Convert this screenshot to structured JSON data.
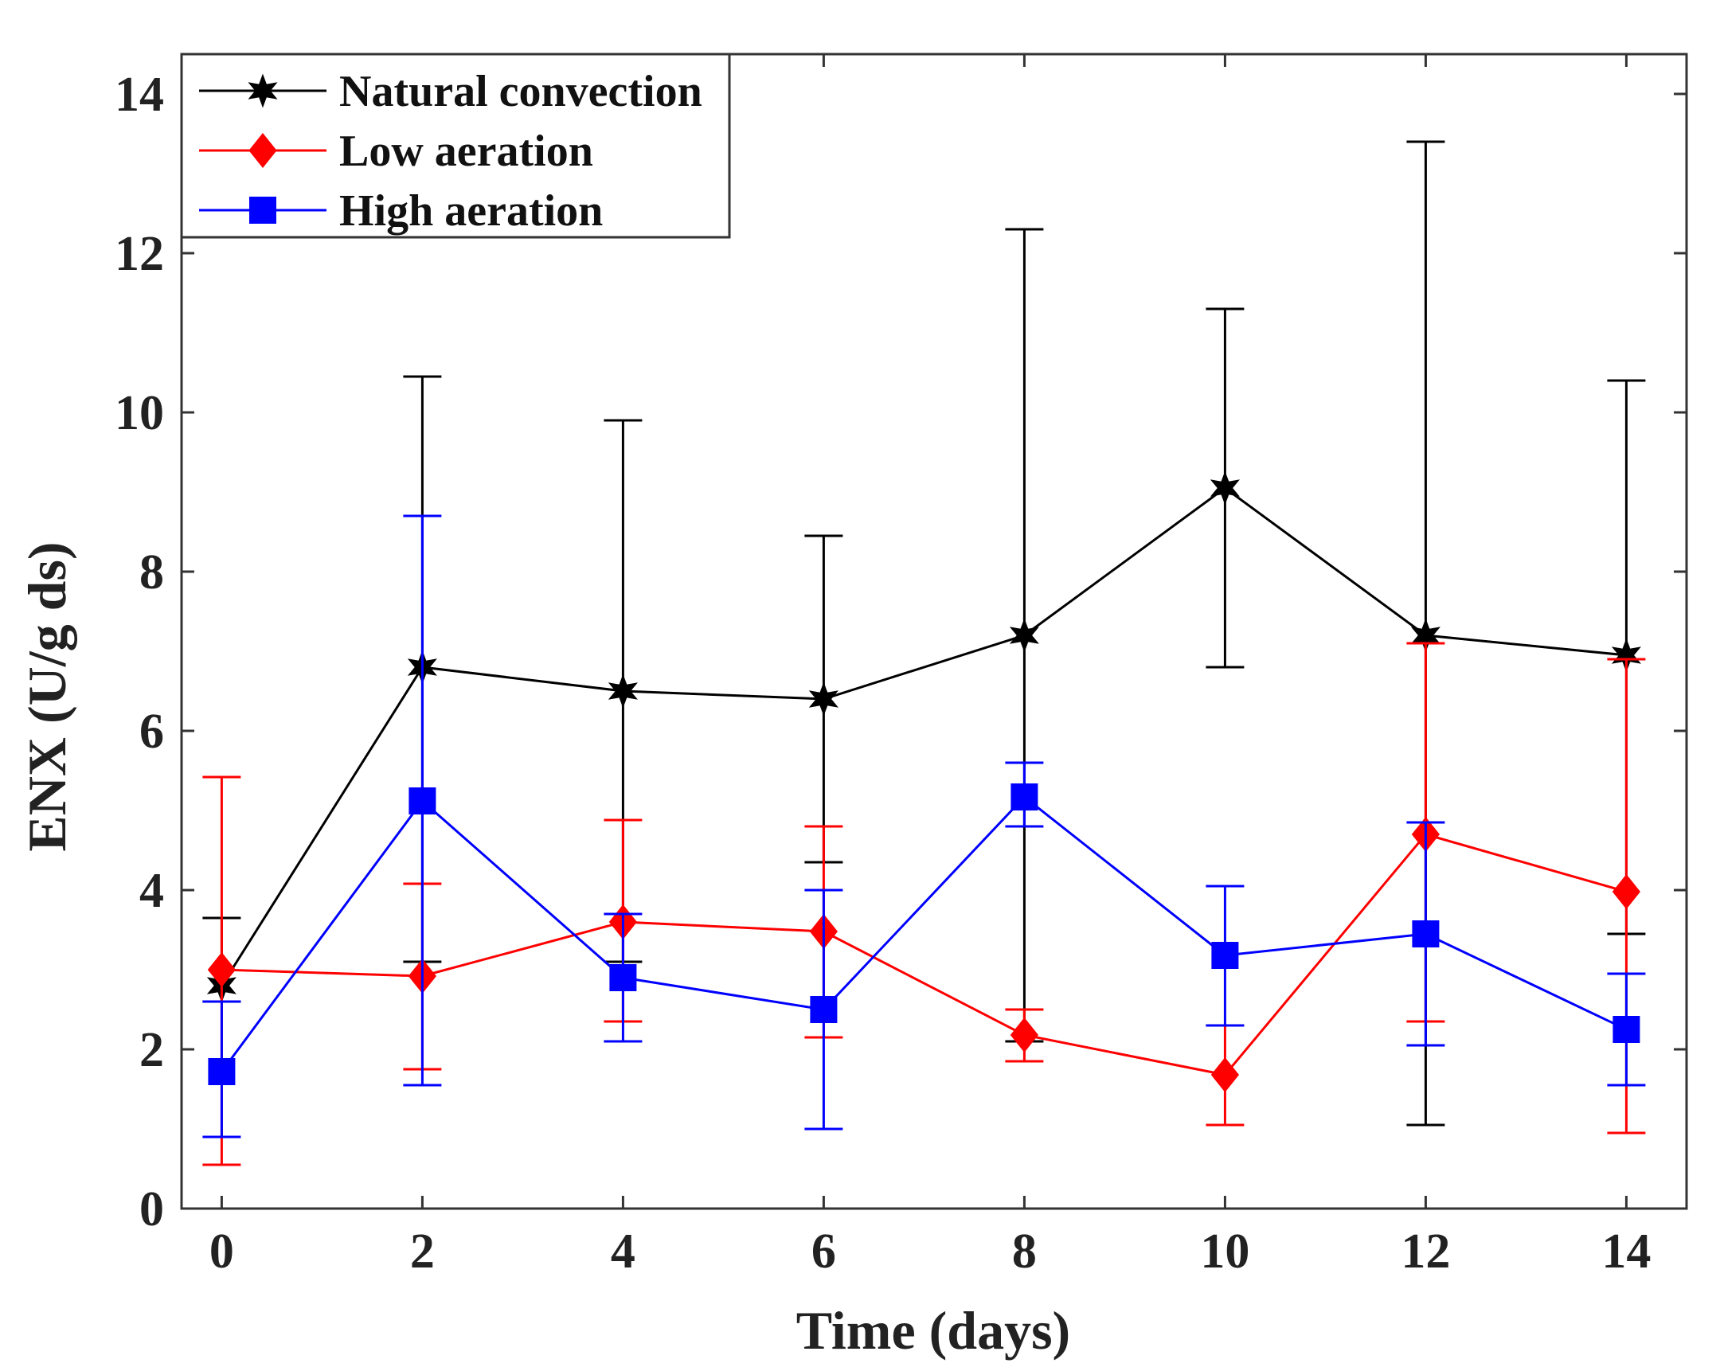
{
  "chart_data": {
    "type": "line",
    "xlabel": "Time (days)",
    "ylabel": "ENX (U/g ds)",
    "xlim": [
      -0.4,
      14.6
    ],
    "ylim": [
      0,
      14.5
    ],
    "x_ticks": [
      0,
      2,
      4,
      6,
      8,
      10,
      12,
      14
    ],
    "y_ticks": [
      0,
      2,
      4,
      6,
      8,
      10,
      12,
      14
    ],
    "grid": false,
    "legend_position": "top-left",
    "x": [
      0,
      2,
      4,
      6,
      8,
      10,
      12,
      14
    ],
    "series": [
      {
        "name": "Natural convection",
        "color": "#000000",
        "marker": "star",
        "values": [
          2.8,
          6.8,
          6.5,
          6.4,
          7.2,
          9.05,
          7.2,
          6.95
        ],
        "err_low": [
          2.6,
          3.1,
          3.1,
          4.35,
          2.1,
          6.8,
          1.05,
          3.45
        ],
        "err_high": [
          3.65,
          10.45,
          9.9,
          8.45,
          12.3,
          11.3,
          13.4,
          10.4
        ]
      },
      {
        "name": "Low aeration",
        "color": "#ff0000",
        "marker": "diamond",
        "values": [
          3.0,
          2.92,
          3.6,
          3.48,
          2.18,
          1.68,
          4.7,
          3.98
        ],
        "err_low": [
          0.55,
          1.75,
          2.35,
          2.15,
          1.85,
          1.05,
          2.35,
          0.95
        ],
        "err_high": [
          5.42,
          4.08,
          4.88,
          4.8,
          2.5,
          2.3,
          7.1,
          6.9
        ]
      },
      {
        "name": "High aeration",
        "color": "#0000ff",
        "marker": "square",
        "values": [
          1.72,
          5.12,
          2.9,
          2.5,
          5.17,
          3.18,
          3.45,
          2.25
        ],
        "err_low": [
          0.9,
          1.55,
          2.1,
          1.0,
          4.8,
          2.3,
          2.05,
          1.55
        ],
        "err_high": [
          2.6,
          8.7,
          3.7,
          4.0,
          5.6,
          4.05,
          4.85,
          2.95
        ]
      }
    ]
  }
}
